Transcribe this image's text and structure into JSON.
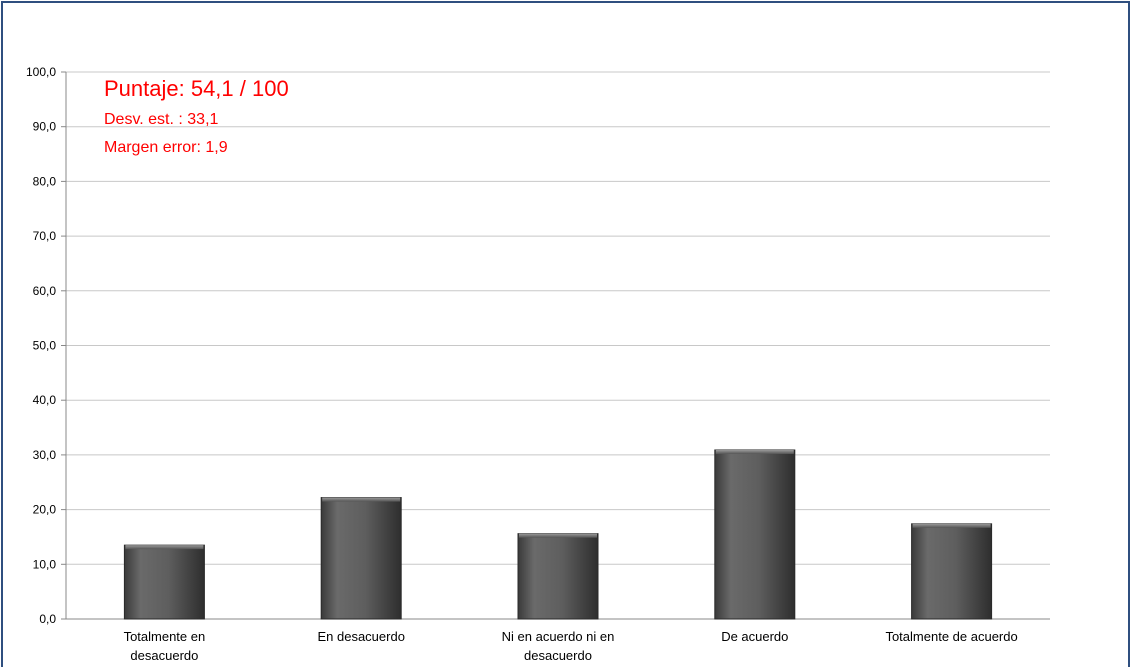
{
  "chart_data": {
    "type": "bar",
    "title": "",
    "xlabel": "",
    "ylabel": "",
    "categories": [
      [
        "Totalmente en",
        "desacuerdo"
      ],
      [
        "En desacuerdo"
      ],
      [
        "Ni en acuerdo ni en",
        "desacuerdo"
      ],
      [
        "De acuerdo"
      ],
      [
        "Totalmente de acuerdo"
      ]
    ],
    "values": [
      13.5,
      22.2,
      15.6,
      30.9,
      17.4
    ],
    "ylim": [
      0,
      100
    ],
    "yticks": [
      0,
      10,
      20,
      30,
      40,
      50,
      60,
      70,
      80,
      90,
      100
    ],
    "ytick_labels": [
      "0,0",
      "10,0",
      "20,0",
      "30,0",
      "40,0",
      "50,0",
      "60,0",
      "70,0",
      "80,0",
      "90,0",
      "100,0"
    ],
    "grid": true,
    "legend": "none",
    "bar_color": "#555555",
    "annotations": {
      "score": "Puntaje: 54,1 / 100",
      "std_dev": "Desv. est. : 33,1",
      "margin_error": "Margen error: 1,9",
      "color": "#ff0000"
    }
  }
}
